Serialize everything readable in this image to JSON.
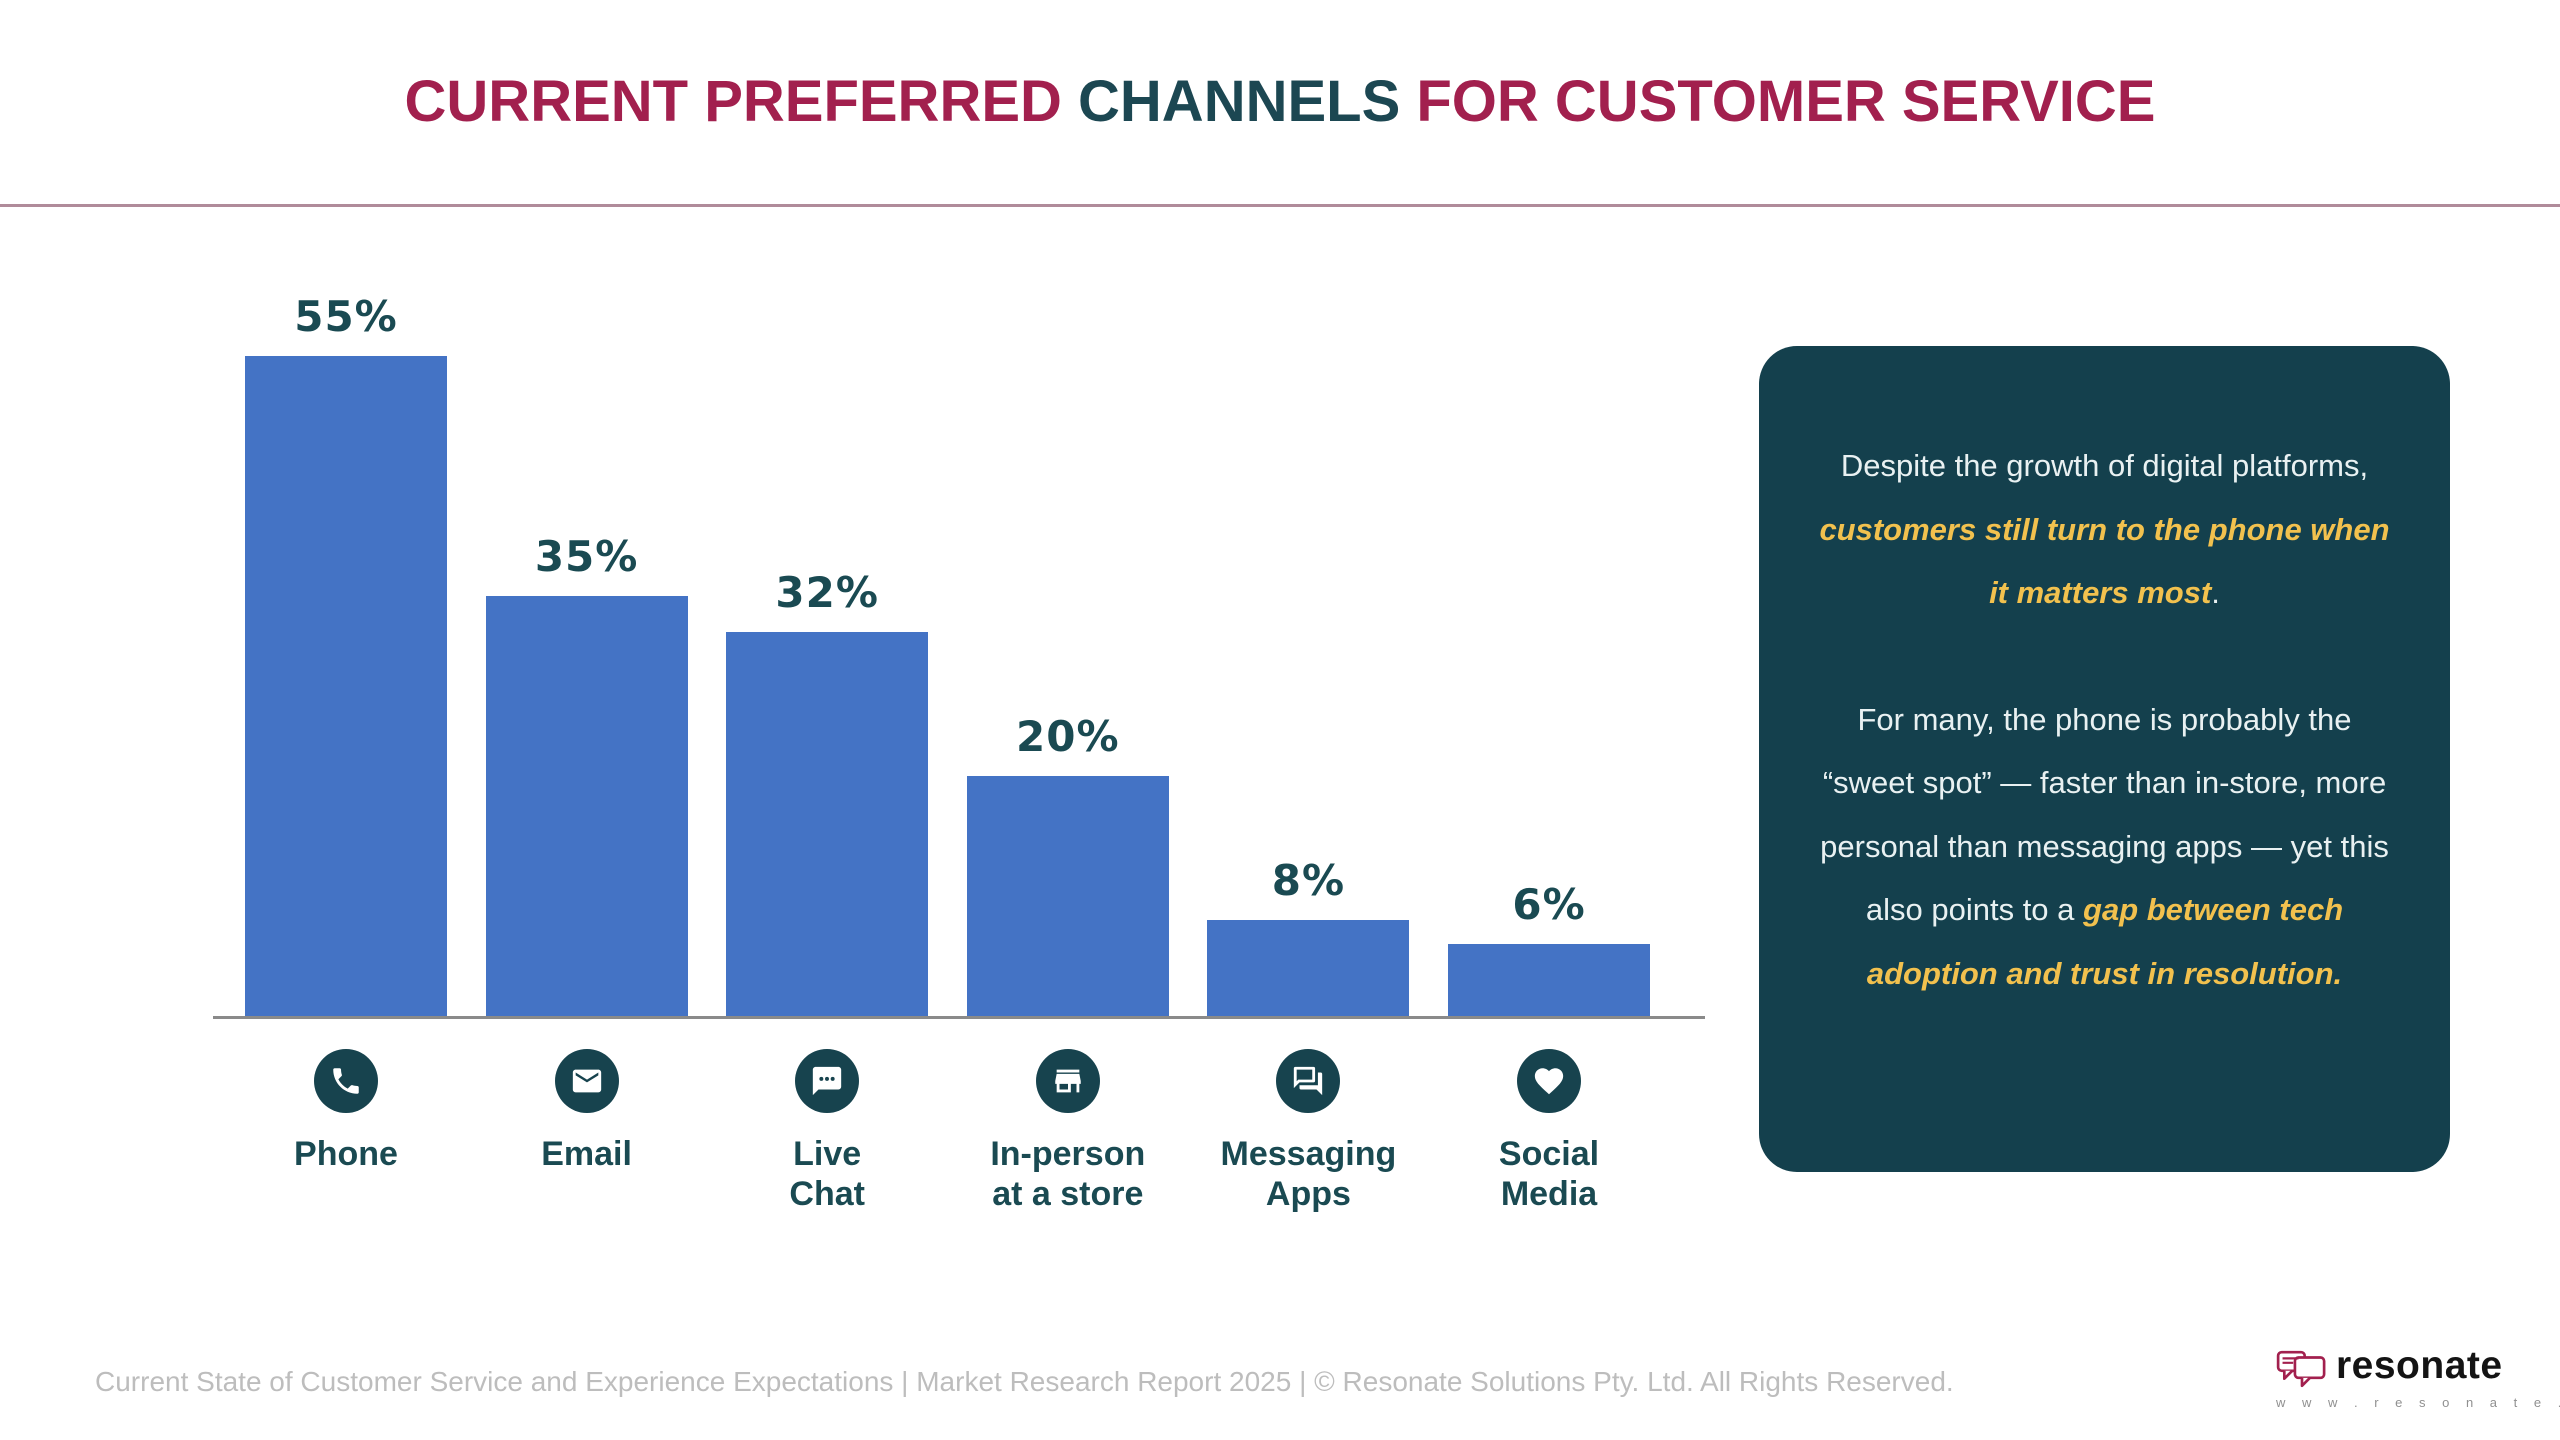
{
  "title": {
    "part1": "CURRENT PREFERRED ",
    "part2": "CHANNELS",
    "part3": " FOR CUSTOMER SERVICE"
  },
  "chart_data": {
    "type": "bar",
    "title": "Current preferred channels for customer service",
    "categories": [
      "Phone",
      "Email",
      "Live Chat",
      "In-person at a store",
      "Messaging Apps",
      "Social Media"
    ],
    "category_lines": [
      "Phone",
      "Email",
      "Live\nChat",
      "In-person\nat a store",
      "Messaging\nApps",
      "Social\nMedia"
    ],
    "values": [
      55,
      35,
      32,
      20,
      8,
      6
    ],
    "value_labels": [
      "55%",
      "35%",
      "32%",
      "20%",
      "8%",
      "6%"
    ],
    "icons": [
      "phone-icon",
      "email-icon",
      "live-chat-icon",
      "store-icon",
      "messaging-apps-icon",
      "heart-icon"
    ],
    "ylim": [
      0,
      60
    ],
    "grid": false,
    "legend": "none",
    "bar_color": "#4473C5"
  },
  "callout": {
    "paragraphs": [
      {
        "segments": [
          {
            "text": "Despite the growth of digital platforms, ",
            "style": "normal"
          },
          {
            "text": "customers still turn to the phone when it matters most",
            "style": "highlight"
          },
          {
            "text": ".",
            "style": "normal"
          }
        ]
      },
      {
        "segments": [
          {
            "text": "For many, the phone is probably the “sweet spot” — faster than in-store, more personal than messaging apps — yet this also points to a ",
            "style": "normal"
          },
          {
            "text": "gap between tech adoption and trust in resolution.",
            "style": "highlight"
          }
        ]
      }
    ]
  },
  "footer": {
    "text": "Current State of Customer Service and Experience Expectations | Market Research Report 2025 | © Resonate Solutions Pty. Ltd. All Rights Reserved."
  },
  "logo": {
    "brand": "resonate",
    "website": "w w w . r e s o n a t e . c x"
  },
  "colors": {
    "crimson": "#A2204E",
    "teal_dark": "#17434E",
    "bar_blue": "#4473C5",
    "yellow_highlight": "#F2C14E",
    "callout_bg": "#14404D",
    "divider": "#B08B9A",
    "axis_gray": "#8A8A8A",
    "footer_gray": "#BDBDBD"
  }
}
